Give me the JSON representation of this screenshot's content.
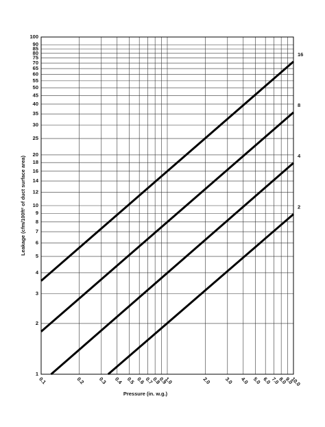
{
  "chart_data": {
    "type": "line",
    "xlabel": "Pressure (in. w.g.)",
    "ylabel": "Leakage (cfm/100ft² of duct surface area)",
    "log_x": true,
    "log_y": true,
    "grid": true,
    "xlim": [
      0.1,
      10
    ],
    "ylim": [
      1,
      100
    ],
    "xticks": [
      0.1,
      0.2,
      0.3,
      0.4,
      0.5,
      0.6,
      0.7,
      0.8,
      0.9,
      {
        "value": 1,
        "label": "1.0"
      },
      {
        "value": 2,
        "label": "2.0"
      },
      {
        "value": 3,
        "label": "3.0"
      },
      {
        "value": 4,
        "label": "4.0"
      },
      {
        "value": 5,
        "label": "5.0"
      },
      {
        "value": 6,
        "label": "6.0"
      },
      {
        "value": 7,
        "label": "7.0"
      },
      {
        "value": 8,
        "label": "8.0"
      },
      {
        "value": 9,
        "label": "9.0"
      },
      {
        "value": 10,
        "label": "10.0"
      }
    ],
    "yticks": [
      1,
      2,
      3,
      4,
      5,
      6,
      7,
      8,
      9,
      10,
      12,
      14,
      16,
      18,
      20,
      25,
      30,
      35,
      40,
      45,
      50,
      55,
      60,
      65,
      70,
      75,
      80,
      85,
      90,
      100
    ],
    "series": [
      {
        "name": "16",
        "color": "#000000",
        "x": [
          0.1,
          10
        ],
        "values": [
          3.58,
          71.5
        ]
      },
      {
        "name": "8",
        "color": "#000000",
        "x": [
          0.1,
          10
        ],
        "values": [
          1.79,
          35.7
        ]
      },
      {
        "name": "4",
        "color": "#000000",
        "x": [
          0.12,
          10
        ],
        "values": [
          1,
          17.9
        ]
      },
      {
        "name": "2",
        "color": "#000000",
        "x": [
          0.34,
          10
        ],
        "values": [
          1,
          8.9
        ]
      }
    ]
  }
}
